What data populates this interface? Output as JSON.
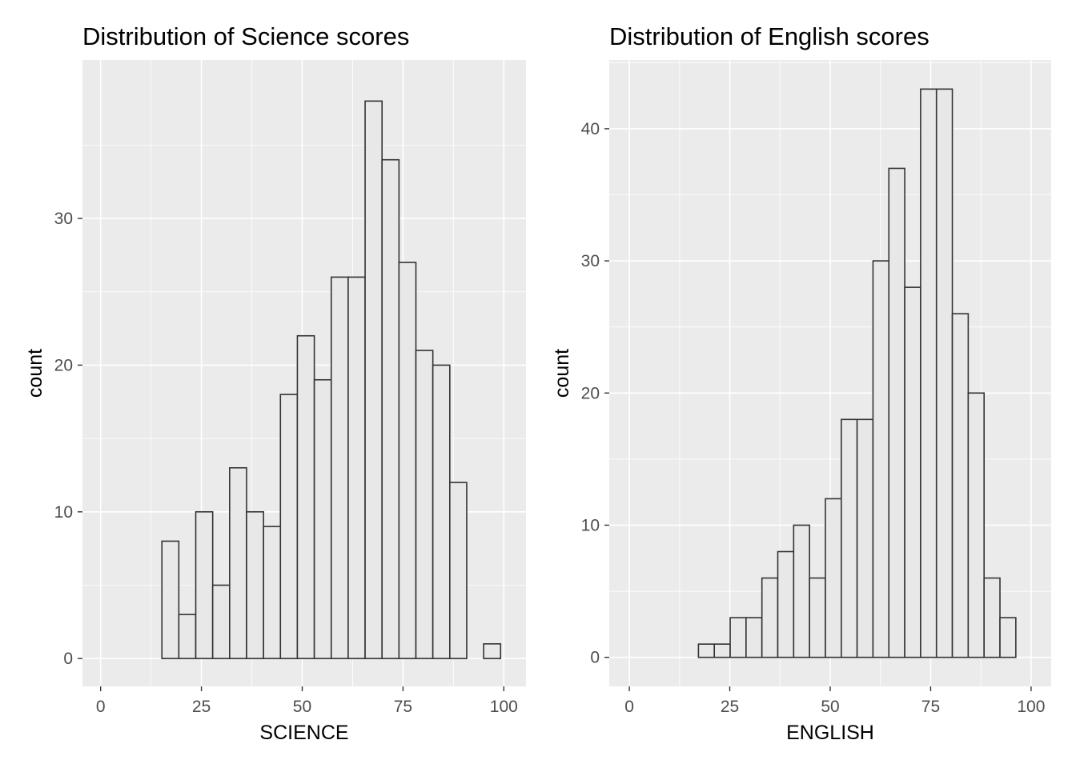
{
  "chart_data": [
    {
      "type": "bar",
      "subtype": "histogram",
      "title": "Distribution of Science scores",
      "xlabel": "SCIENCE",
      "ylabel": "count",
      "xlim": [
        -4.5,
        105.5
      ],
      "ylim": [
        -1.9,
        40.8
      ],
      "x_ticks": [
        0,
        25,
        50,
        75,
        100
      ],
      "y_ticks": [
        0,
        10,
        20,
        30
      ],
      "grid": true,
      "bin_width": 4.2,
      "bin_start": 15.2,
      "values": [
        8,
        3,
        10,
        5,
        13,
        10,
        9,
        18,
        22,
        19,
        26,
        26,
        38,
        34,
        27,
        21,
        20,
        12,
        0,
        1
      ],
      "colors": {
        "panel": "#ebebeb",
        "grid": "#ffffff",
        "bar_fill": "#e8e8e8",
        "bar_stroke": "#333333"
      }
    },
    {
      "type": "bar",
      "subtype": "histogram",
      "title": "Distribution of English scores",
      "xlabel": "ENGLISH",
      "ylabel": "count",
      "xlim": [
        -5.0,
        105.0
      ],
      "ylim": [
        -2.2,
        45.2
      ],
      "x_ticks": [
        0,
        25,
        50,
        75,
        100
      ],
      "y_ticks": [
        0,
        10,
        20,
        30,
        40
      ],
      "grid": true,
      "bin_width": 3.95,
      "bin_start": 17.2,
      "values": [
        1,
        1,
        3,
        3,
        6,
        8,
        10,
        6,
        12,
        18,
        18,
        30,
        37,
        28,
        43,
        43,
        26,
        20,
        6,
        3
      ],
      "colors": {
        "panel": "#ebebeb",
        "grid": "#ffffff",
        "bar_fill": "#e8e8e8",
        "bar_stroke": "#333333"
      }
    }
  ]
}
